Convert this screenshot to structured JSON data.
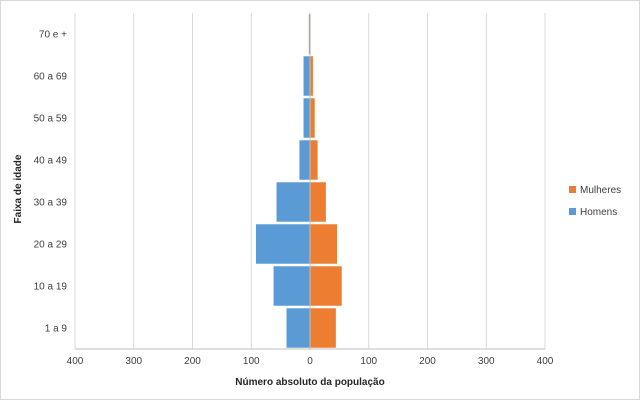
{
  "chart_data": {
    "type": "bar",
    "orientation": "horizontal",
    "stacked_mirror": true,
    "categories": [
      "1 a 9",
      "10 a 19",
      "20 a 29",
      "30 a 39",
      "40 a 49",
      "50 a 59",
      "60 a 69",
      "70 e +"
    ],
    "series": [
      {
        "name": "Homens",
        "values": [
          -40,
          -62,
          -92,
          -57,
          -18,
          -11,
          -11,
          -2
        ],
        "color": "#5b9bd5"
      },
      {
        "name": "Mulheres",
        "values": [
          44,
          54,
          46,
          27,
          13,
          8,
          5,
          1
        ],
        "color": "#ed7d31"
      }
    ],
    "xlabel": "Número absoluto da população",
    "ylabel": "Faixa de idade",
    "xlim": [
      -400,
      400
    ],
    "xticks": [
      -400,
      -300,
      -200,
      -100,
      0,
      100,
      200,
      300,
      400
    ],
    "xtick_labels": [
      "400",
      "300",
      "200",
      "100",
      "0",
      "100",
      "200",
      "300",
      "400"
    ],
    "grid": true,
    "legend_position": "right",
    "legend_order": [
      "Mulheres",
      "Homens"
    ]
  }
}
